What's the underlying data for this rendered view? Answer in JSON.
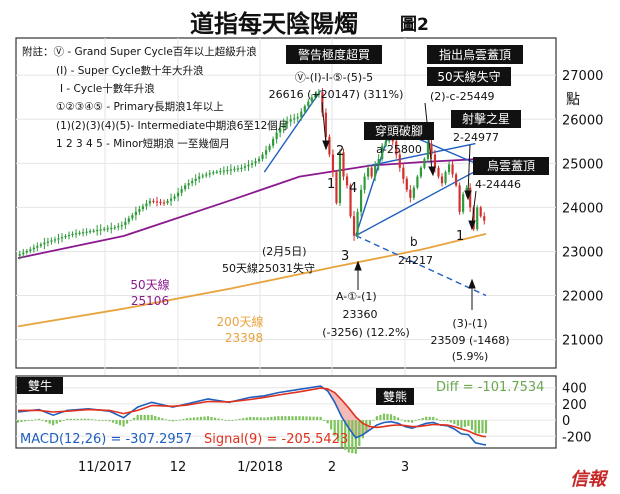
{
  "chart_data": [
    {
      "type": "candlestick",
      "title": "道指每天陰陽燭",
      "subtitle": "圖2",
      "ylabel": "點",
      "yticks": [
        21000,
        22000,
        23000,
        24000,
        25000,
        26000,
        27000
      ],
      "ylim": [
        20400,
        27800
      ],
      "xticks": [
        "11/2017",
        "12",
        "1/2018",
        "2",
        "3"
      ],
      "price_path": [
        [
          0,
          22900
        ],
        [
          4,
          23050
        ],
        [
          8,
          23200
        ],
        [
          12,
          23300
        ],
        [
          16,
          23400
        ],
        [
          20,
          23450
        ],
        [
          24,
          23500
        ],
        [
          28,
          23550
        ],
        [
          30,
          23600
        ],
        [
          34,
          23900
        ],
        [
          38,
          24150
        ],
        [
          42,
          24100
        ],
        [
          45,
          24250
        ],
        [
          48,
          24500
        ],
        [
          52,
          24700
        ],
        [
          56,
          24800
        ],
        [
          60,
          24850
        ],
        [
          64,
          24900
        ],
        [
          67,
          25000
        ],
        [
          69,
          25100
        ],
        [
          72,
          25400
        ],
        [
          74,
          25700
        ],
        [
          76,
          25900
        ],
        [
          78,
          26000
        ],
        [
          80,
          26050
        ],
        [
          82,
          26300
        ],
        [
          84,
          26500
        ],
        [
          86,
          26616
        ],
        [
          87,
          26150
        ],
        [
          88,
          25600
        ],
        [
          89,
          25200
        ],
        [
          90,
          24800
        ],
        [
          91,
          24100
        ],
        [
          92,
          25250
        ],
        [
          93,
          24700
        ],
        [
          94,
          24500
        ],
        [
          95,
          23800
        ],
        [
          96,
          23360
        ],
        [
          97,
          23900
        ],
        [
          98,
          24400
        ],
        [
          99,
          24700
        ],
        [
          100,
          24900
        ],
        [
          101,
          24700
        ],
        [
          102,
          24950
        ],
        [
          103,
          25100
        ],
        [
          104,
          25400
        ],
        [
          105,
          25500
        ],
        [
          106,
          25800
        ],
        [
          107,
          25500
        ],
        [
          108,
          25200
        ],
        [
          109,
          24900
        ],
        [
          110,
          24650
        ],
        [
          111,
          24400
        ],
        [
          112,
          24217
        ],
        [
          113,
          24450
        ],
        [
          114,
          24700
        ],
        [
          115,
          24900
        ],
        [
          116,
          25100
        ],
        [
          117,
          25449
        ],
        [
          118,
          25200
        ],
        [
          119,
          24900
        ],
        [
          120,
          24700
        ],
        [
          121,
          24550
        ],
        [
          122,
          24800
        ],
        [
          123,
          24977
        ],
        [
          124,
          24750
        ],
        [
          125,
          24500
        ],
        [
          126,
          23900
        ],
        [
          127,
          24300
        ],
        [
          128,
          24446
        ],
        [
          129,
          24000
        ],
        [
          130,
          23509
        ],
        [
          131,
          24000
        ],
        [
          132,
          23800
        ],
        [
          133,
          23700
        ]
      ],
      "series": [
        {
          "name": "50天線",
          "value_label": "25106",
          "color": "#8B1A8F",
          "points": [
            [
              0,
              22850
            ],
            [
              30,
              23350
            ],
            [
              60,
              24150
            ],
            [
              80,
              24700
            ],
            [
              100,
              24950
            ],
            [
              115,
              25030
            ],
            [
              133,
              25106
            ]
          ]
        },
        {
          "name": "200天線",
          "value_label": "23398",
          "color": "#E8A33D",
          "points": [
            [
              0,
              21300
            ],
            [
              30,
              21700
            ],
            [
              60,
              22150
            ],
            [
              90,
              22650
            ],
            [
              115,
              23050
            ],
            [
              133,
              23398
            ]
          ]
        }
      ],
      "legend_notes": [
        "附註：Ⓥ - Grand Super Cycle百年以上超級升浪",
        "(I) - Super Cycle數十年大升浪",
        "I  - Cycle十數年升浪",
        "①②③④⑤ - Primary長期浪1年以上",
        "(1)(2)(3)(4)(5)- Intermediate中期浪6至12個月",
        "1 2 3 4 5 - Minor短期浪 一至幾個月"
      ],
      "annotations": {
        "top_box": "警告極度超買",
        "top_wave": "Ⓥ-(I)-I-⑤-(5)-5",
        "top_value": "26616 (+20147) (311%)",
        "head_box": "穿頭破腳",
        "head_value": "a-25800",
        "cloud_box1": "指出烏雲蓋頂",
        "cloud_box2": "50天線失守",
        "cloud_value": "(2)-c-25449",
        "star_box": "射擊之星",
        "star_value": "2-24977",
        "cloud2_box": "烏雲蓋頂",
        "cloud2_value": "4-24446",
        "ma_lost1": "(2月5日)",
        "ma_lost2": "50天線25031失守",
        "low_wave": "A-①-(1)",
        "low_value": "23360",
        "low_change": "(-3256) (12.2%)",
        "b_label": "b",
        "b_value": "24217",
        "right_wave": "(3)-(1)",
        "right_value": "23509 (-1468)",
        "right_change": "(5.9%)",
        "wave_2": "2",
        "wave_1": "1",
        "wave_4": "4",
        "wave_3": "3",
        "wave_1b": "1",
        "ma50_label": "50天線",
        "ma50_value": "25106",
        "ma200_label": "200天線",
        "ma200_value": "23398"
      }
    },
    {
      "type": "line",
      "title": "雙牛",
      "bear_label": "雙熊",
      "diff_label": "Diff = -101.7534",
      "macd_label": "MACD(12,26) = -307.2957",
      "signal_label": "Signal(9) = -205.5423",
      "yticks": [
        400,
        200,
        0,
        -200
      ],
      "ylim": [
        -320,
        520
      ],
      "series": [
        {
          "name": "MACD(12,26)",
          "color": "#1f5fbf",
          "points": [
            [
              0,
              100
            ],
            [
              6,
              130
            ],
            [
              10,
              60
            ],
            [
              14,
              120
            ],
            [
              20,
              140
            ],
            [
              26,
              110
            ],
            [
              30,
              30
            ],
            [
              34,
              160
            ],
            [
              38,
              220
            ],
            [
              44,
              160
            ],
            [
              48,
              200
            ],
            [
              54,
              260
            ],
            [
              60,
              220
            ],
            [
              66,
              280
            ],
            [
              70,
              300
            ],
            [
              74,
              340
            ],
            [
              80,
              380
            ],
            [
              86,
              420
            ],
            [
              88,
              360
            ],
            [
              90,
              220
            ],
            [
              92,
              40
            ],
            [
              94,
              -100
            ],
            [
              96,
              -220
            ],
            [
              98,
              -180
            ],
            [
              100,
              -120
            ],
            [
              102,
              -60
            ],
            [
              104,
              -30
            ],
            [
              106,
              -20
            ],
            [
              108,
              -40
            ],
            [
              110,
              -80
            ],
            [
              112,
              -100
            ],
            [
              114,
              -70
            ],
            [
              116,
              -40
            ],
            [
              118,
              -30
            ],
            [
              120,
              -60
            ],
            [
              122,
              -70
            ],
            [
              124,
              -110
            ],
            [
              126,
              -170
            ],
            [
              128,
              -180
            ],
            [
              130,
              -280
            ],
            [
              132,
              -300
            ],
            [
              133,
              -307
            ]
          ]
        },
        {
          "name": "Signal(9)",
          "color": "#e0301e",
          "points": [
            [
              0,
              120
            ],
            [
              6,
              120
            ],
            [
              10,
              100
            ],
            [
              14,
              110
            ],
            [
              20,
              130
            ],
            [
              26,
              120
            ],
            [
              30,
              80
            ],
            [
              34,
              120
            ],
            [
              38,
              180
            ],
            [
              44,
              170
            ],
            [
              48,
              185
            ],
            [
              54,
              230
            ],
            [
              60,
              225
            ],
            [
              66,
              255
            ],
            [
              70,
              280
            ],
            [
              74,
              310
            ],
            [
              80,
              350
            ],
            [
              86,
              395
            ],
            [
              88,
              385
            ],
            [
              90,
              340
            ],
            [
              92,
              250
            ],
            [
              94,
              150
            ],
            [
              96,
              40
            ],
            [
              98,
              -40
            ],
            [
              100,
              -80
            ],
            [
              102,
              -90
            ],
            [
              104,
              -80
            ],
            [
              106,
              -65
            ],
            [
              108,
              -60
            ],
            [
              110,
              -68
            ],
            [
              112,
              -80
            ],
            [
              114,
              -78
            ],
            [
              116,
              -66
            ],
            [
              118,
              -55
            ],
            [
              120,
              -58
            ],
            [
              122,
              -62
            ],
            [
              124,
              -80
            ],
            [
              126,
              -110
            ],
            [
              128,
              -135
            ],
            [
              130,
              -175
            ],
            [
              132,
              -200
            ],
            [
              133,
              -205
            ]
          ]
        }
      ]
    }
  ],
  "footer": {
    "logo": "信報"
  }
}
